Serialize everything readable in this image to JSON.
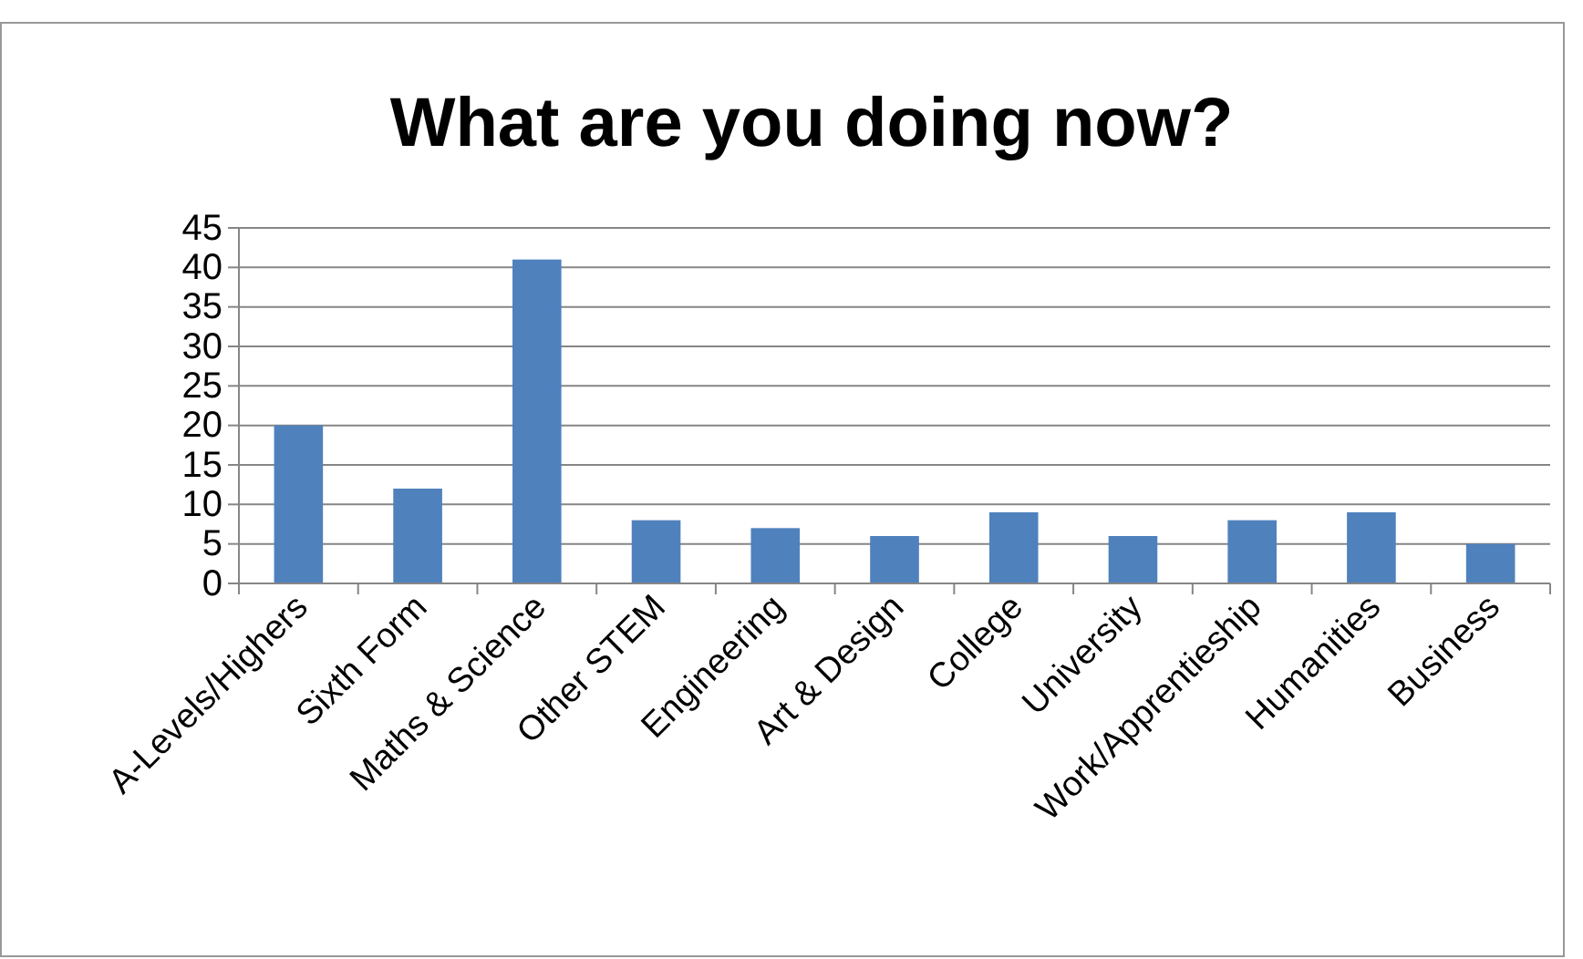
{
  "chart_data": {
    "type": "bar",
    "title": "What are you doing now?",
    "categories": [
      "A-Levels/Highers",
      "Sixth Form",
      "Maths & Science",
      "Other STEM",
      "Engineering",
      "Art & Design",
      "College",
      "University",
      "Work/Apprentieship",
      "Humanities",
      "Business"
    ],
    "values": [
      20,
      12,
      41,
      8,
      7,
      6,
      9,
      6,
      8,
      9,
      5
    ],
    "color": "#4f81bd",
    "ylim": [
      0,
      45
    ],
    "yticks": [
      0,
      5,
      10,
      15,
      20,
      25,
      30,
      35,
      40,
      45
    ],
    "grid": "y"
  }
}
